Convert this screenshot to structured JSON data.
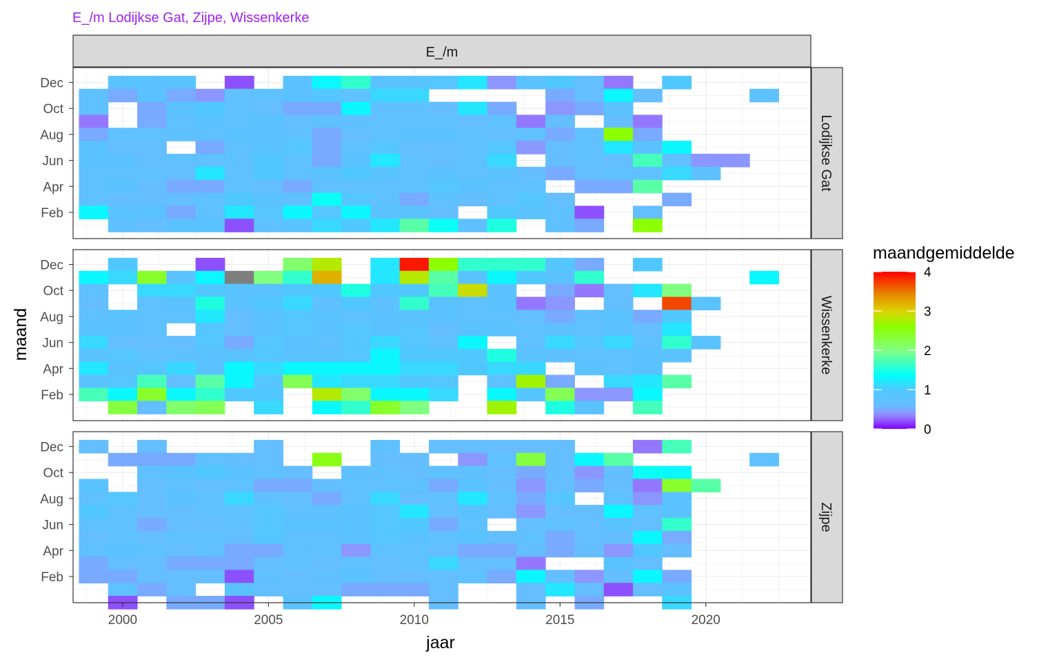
{
  "chart_data": {
    "type": "heatmap",
    "title": "E_/m Lodijkse Gat, Zijpe, Wissenkerke",
    "title_color": "#A020F0",
    "column_strip": "E_/m",
    "xlabel": "jaar",
    "ylabel": "maand",
    "xlim": [
      1998.3,
      2023.6
    ],
    "x_ticks": [
      2000,
      2005,
      2010,
      2015,
      2020
    ],
    "y_tick_labels": [
      "Feb",
      "Apr",
      "Jun",
      "Aug",
      "Oct",
      "Dec"
    ],
    "y_tick_months": [
      2,
      4,
      6,
      8,
      10,
      12
    ],
    "legend": {
      "title": "maandgemiddelde",
      "range": [
        0,
        4
      ],
      "ticks": [
        0,
        1,
        2,
        3,
        4
      ],
      "placement": "right"
    },
    "panels": [
      {
        "name": "Lodijkse Gat",
        "rows": [
          {
            "month": 12,
            "start": 2000,
            "values": [
              0.8,
              0.8,
              0.8,
              null,
              0.2,
              null,
              0.8,
              1.3,
              1.6,
              0.8,
              0.8,
              0.9,
              1.2,
              0.4,
              0.8,
              1.0,
              0.6,
              0.3,
              null,
              1.0
            ]
          },
          {
            "month": 11,
            "start": 1999,
            "values": [
              0.7,
              0.5,
              0.8,
              0.5,
              0.4,
              0.7,
              0.7,
              0.8,
              0.9,
              0.7,
              1.1,
              1.1,
              null,
              null,
              null,
              null,
              0.5,
              0.6,
              1.3,
              0.6,
              null,
              null,
              null,
              0.7
            ]
          },
          {
            "month": 10,
            "start": 1999,
            "values": [
              0.7,
              null,
              0.5,
              0.8,
              1.0,
              0.7,
              0.6,
              0.5,
              0.5,
              1.3,
              0.7,
              0.7,
              0.6,
              1.2,
              0.5,
              null,
              0.4,
              0.5,
              0.8
            ]
          },
          {
            "month": 9,
            "start": 1999,
            "values": [
              0.3,
              null,
              0.5,
              0.7,
              0.8,
              0.7,
              0.8,
              0.6,
              0.7,
              0.7,
              0.7,
              0.7,
              0.7,
              0.6,
              0.7,
              0.3,
              0.6,
              null,
              0.6,
              0.3
            ]
          },
          {
            "month": 8,
            "start": 1999,
            "values": [
              0.5,
              0.7,
              0.7,
              0.7,
              0.7,
              0.8,
              0.8,
              0.7,
              0.5,
              0.6,
              0.7,
              0.8,
              0.8,
              0.7,
              0.6,
              0.7,
              0.5,
              0.7,
              2.6,
              0.5
            ]
          },
          {
            "month": 7,
            "start": 1999,
            "values": [
              0.8,
              0.6,
              0.6,
              null,
              0.5,
              0.7,
              0.8,
              0.9,
              0.5,
              0.7,
              0.9,
              0.6,
              0.6,
              0.7,
              0.9,
              0.4,
              0.6,
              0.7,
              1.2,
              0.8,
              1.3
            ]
          },
          {
            "month": 6,
            "start": 1999,
            "values": [
              0.8,
              0.8,
              0.6,
              0.7,
              0.7,
              0.7,
              1.0,
              0.7,
              0.5,
              0.8,
              1.2,
              0.7,
              0.6,
              0.7,
              1.1,
              null,
              0.6,
              0.7,
              0.6,
              1.7,
              0.7,
              0.4,
              0.4
            ]
          },
          {
            "month": 5,
            "start": 1999,
            "values": [
              0.7,
              0.7,
              0.7,
              0.6,
              1.2,
              0.7,
              1.0,
              0.7,
              0.8,
              1.0,
              0.8,
              0.7,
              0.8,
              0.7,
              0.8,
              0.6,
              0.5,
              0.6,
              0.7,
              0.7,
              1.1,
              0.7
            ]
          },
          {
            "month": 4,
            "start": 1999,
            "values": [
              0.7,
              0.8,
              0.6,
              0.5,
              0.5,
              0.7,
              0.6,
              0.5,
              0.7,
              0.7,
              0.7,
              0.7,
              0.9,
              0.8,
              0.7,
              0.7,
              null,
              0.5,
              0.5,
              1.8
            ]
          },
          {
            "month": 3,
            "start": 1999,
            "values": [
              0.7,
              0.6,
              0.6,
              0.6,
              0.7,
              1.0,
              0.8,
              0.7,
              1.4,
              0.9,
              0.7,
              0.5,
              0.7,
              0.6,
              0.7,
              0.9,
              0.6,
              null,
              null,
              null,
              0.5
            ]
          },
          {
            "month": 2,
            "start": 1999,
            "values": [
              1.3,
              0.8,
              0.8,
              0.5,
              0.7,
              1.2,
              0.9,
              1.3,
              0.9,
              1.3,
              0.8,
              0.8,
              0.6,
              null,
              1.0,
              0.8,
              0.7,
              0.2,
              null,
              0.6
            ]
          },
          {
            "month": 1,
            "start": 2000,
            "values": [
              0.7,
              0.6,
              0.8,
              0.8,
              0.2,
              0.7,
              0.8,
              1.1,
              1.0,
              1.2,
              1.8,
              1.4,
              0.7,
              1.5,
              null,
              0.7,
              0.5,
              null,
              2.6
            ]
          }
        ]
      },
      {
        "name": "Wissenkerke",
        "rows": [
          {
            "month": 12,
            "start": 2000,
            "values": [
              1.0,
              null,
              null,
              0.2,
              null,
              null,
              2.1,
              2.8,
              null,
              1.2,
              3.9,
              2.6,
              1.6,
              1.6,
              1.6,
              0.9,
              0.5,
              null,
              1.0
            ]
          },
          {
            "month": 11,
            "start": 1999,
            "values": [
              1.3,
              1.1,
              2.4,
              0.8,
              1.3,
              -1.0,
              2.0,
              1.6,
              3.2,
              null,
              1.2,
              2.8,
              1.8,
              0.8,
              1.3,
              1.0,
              0.8,
              1.6,
              null,
              null,
              null,
              null,
              null,
              1.3
            ]
          },
          {
            "month": 10,
            "start": 1999,
            "values": [
              0.7,
              null,
              1.1,
              1.1,
              1.0,
              0.8,
              0.8,
              1.0,
              1.0,
              1.5,
              1.0,
              1.0,
              1.7,
              2.9,
              0.8,
              null,
              0.5,
              0.3,
              0.6,
              1.2,
              2.0
            ]
          },
          {
            "month": 9,
            "start": 1999,
            "values": [
              0.6,
              null,
              0.7,
              0.8,
              1.5,
              0.8,
              1.0,
              1.1,
              0.7,
              1.0,
              0.7,
              1.6,
              0.8,
              0.7,
              0.8,
              0.3,
              0.4,
              null,
              0.6,
              null,
              3.7,
              0.8
            ]
          },
          {
            "month": 8,
            "start": 1999,
            "values": [
              0.7,
              0.8,
              0.7,
              0.7,
              1.2,
              0.6,
              0.8,
              0.9,
              0.8,
              0.7,
              0.8,
              0.8,
              0.8,
              0.7,
              0.7,
              0.6,
              0.5,
              0.7,
              0.8,
              0.5,
              1.0
            ]
          },
          {
            "month": 7,
            "start": 1999,
            "values": [
              0.8,
              0.8,
              0.7,
              null,
              0.9,
              0.6,
              0.8,
              0.9,
              0.8,
              0.9,
              0.8,
              0.9,
              0.6,
              0.8,
              0.8,
              0.7,
              0.7,
              0.7,
              0.8,
              0.6,
              1.2
            ]
          },
          {
            "month": 6,
            "start": 1999,
            "values": [
              1.1,
              0.6,
              0.6,
              0.6,
              0.9,
              0.5,
              0.9,
              0.8,
              0.7,
              0.9,
              1.1,
              0.9,
              0.7,
              1.3,
              null,
              0.7,
              1.1,
              0.9,
              1.1,
              0.7,
              1.6,
              0.8
            ]
          },
          {
            "month": 5,
            "start": 1999,
            "values": [
              0.8,
              0.9,
              0.7,
              0.7,
              0.8,
              0.8,
              0.9,
              0.8,
              0.8,
              0.9,
              1.3,
              1.0,
              1.0,
              1.0,
              1.5,
              0.8,
              0.7,
              0.7,
              0.7,
              0.8,
              0.8
            ]
          },
          {
            "month": 4,
            "start": 1999,
            "values": [
              1.2,
              0.8,
              0.9,
              1.1,
              0.8,
              1.3,
              1.1,
              1.3,
              1.3,
              1.3,
              1.3,
              1.1,
              1.1,
              1.0,
              1.1,
              1.1,
              null,
              0.8,
              0.7,
              0.8
            ]
          },
          {
            "month": 3,
            "start": 1999,
            "values": [
              0.8,
              0.9,
              1.7,
              0.6,
              1.8,
              1.3,
              0.9,
              2.2,
              1.2,
              1.1,
              1.1,
              1.0,
              0.9,
              null,
              0.7,
              2.7,
              0.5,
              null,
              1.1,
              1.2,
              1.8
            ]
          },
          {
            "month": 2,
            "start": 1999,
            "values": [
              1.7,
              1.3,
              2.4,
              1.3,
              1.6,
              1.0,
              1.0,
              null,
              2.8,
              2.1,
              1.3,
              1.3,
              1.1,
              null,
              1.3,
              0.9,
              2.2,
              0.4,
              0.4,
              1.3
            ]
          },
          {
            "month": 1,
            "start": 2000,
            "values": [
              2.3,
              0.6,
              2.1,
              2.2,
              null,
              1.1,
              null,
              1.3,
              1.6,
              2.4,
              2.0,
              null,
              null,
              2.7,
              null,
              1.5,
              0.8,
              null,
              1.7
            ]
          }
        ]
      },
      {
        "name": "Zijpe",
        "rows": [
          {
            "month": 12,
            "start": 1999,
            "values": [
              0.6,
              null,
              0.6,
              null,
              null,
              null,
              0.6,
              null,
              null,
              null,
              0.7,
              null,
              0.6,
              0.6,
              0.6,
              0.6,
              0.6,
              null,
              null,
              0.3,
              1.7
            ]
          },
          {
            "month": 11,
            "start": 2000,
            "values": [
              0.5,
              0.5,
              0.5,
              0.7,
              0.6,
              0.6,
              null,
              2.5,
              null,
              0.6,
              0.6,
              null,
              0.4,
              0.7,
              2.3,
              0.6,
              1.3,
              1.8,
              null,
              null,
              null,
              null,
              0.7
            ]
          },
          {
            "month": 10,
            "start": 2001,
            "values": [
              0.7,
              0.8,
              1.0,
              0.8,
              0.7,
              0.6,
              null,
              0.7,
              0.7,
              0.6,
              0.7,
              0.7,
              0.6,
              0.5,
              0.6,
              0.4,
              0.6,
              1.4,
              1.3
            ]
          },
          {
            "month": 9,
            "start": 1999,
            "values": [
              0.8,
              null,
              0.6,
              0.7,
              0.6,
              0.7,
              0.5,
              0.5,
              0.6,
              0.7,
              0.7,
              0.7,
              0.5,
              0.8,
              0.6,
              0.4,
              0.6,
              0.5,
              0.6,
              0.3,
              2.4,
              1.8
            ]
          },
          {
            "month": 8,
            "start": 1999,
            "values": [
              0.7,
              0.9,
              0.6,
              0.8,
              0.7,
              1.1,
              0.7,
              0.6,
              0.5,
              0.7,
              1.1,
              0.6,
              0.7,
              1.2,
              0.7,
              0.5,
              0.9,
              null,
              0.7,
              0.4,
              0.8
            ]
          },
          {
            "month": 7,
            "start": 1999,
            "values": [
              1.0,
              0.7,
              0.6,
              0.6,
              0.7,
              0.7,
              0.9,
              0.7,
              0.7,
              0.8,
              0.9,
              1.2,
              0.6,
              0.8,
              0.6,
              0.4,
              0.6,
              0.6,
              1.3,
              0.7,
              0.8
            ]
          },
          {
            "month": 6,
            "start": 1999,
            "values": [
              0.7,
              0.7,
              0.5,
              0.6,
              0.6,
              0.7,
              0.9,
              0.8,
              0.8,
              0.8,
              0.9,
              1.0,
              0.5,
              0.7,
              null,
              0.6,
              0.7,
              0.6,
              0.8,
              0.6,
              1.6
            ]
          },
          {
            "month": 5,
            "start": 1999,
            "values": [
              0.6,
              0.7,
              0.6,
              0.7,
              0.7,
              0.6,
              0.9,
              0.7,
              0.7,
              0.8,
              0.9,
              0.8,
              0.7,
              0.8,
              0.6,
              0.7,
              0.5,
              0.6,
              0.6,
              1.3,
              0.5
            ]
          },
          {
            "month": 4,
            "start": 1999,
            "values": [
              0.7,
              0.8,
              0.7,
              0.6,
              0.7,
              0.5,
              0.5,
              0.7,
              0.7,
              0.4,
              0.7,
              0.7,
              0.6,
              0.5,
              0.5,
              0.6,
              0.5,
              0.6,
              0.4,
              1.0,
              0.6
            ]
          },
          {
            "month": 3,
            "start": 1999,
            "values": [
              0.5,
              0.6,
              0.6,
              0.5,
              0.5,
              0.5,
              0.6,
              0.7,
              0.6,
              0.7,
              0.6,
              0.7,
              1.1,
              0.6,
              0.6,
              0.3,
              null,
              null,
              0.8,
              0.6
            ]
          },
          {
            "month": 2,
            "start": 1999,
            "values": [
              0.5,
              0.5,
              0.6,
              0.6,
              0.6,
              0.2,
              0.7,
              0.6,
              0.7,
              0.8,
              0.6,
              0.6,
              0.6,
              0.7,
              0.5,
              1.3,
              0.6,
              0.4,
              0.6,
              1.3,
              0.5
            ]
          },
          {
            "month": 1,
            "start": 2000,
            "values": [
              0.7,
              0.5,
              0.6,
              null,
              0.8,
              0.6,
              0.6,
              0.6,
              0.5,
              0.5,
              0.5,
              0.6,
              null,
              null,
              0.6,
              1.2,
              0.6,
              0.2,
              0.6,
              0.8
            ]
          },
          {
            "month": 0,
            "start": 2000,
            "values": [
              0.2,
              null,
              0.5,
              0.5,
              0.2,
              null,
              0.8,
              1.3,
              null,
              null,
              null,
              0.6,
              null,
              null,
              0.6,
              null,
              0.5,
              null,
              null,
              1.1
            ]
          }
        ]
      }
    ]
  }
}
